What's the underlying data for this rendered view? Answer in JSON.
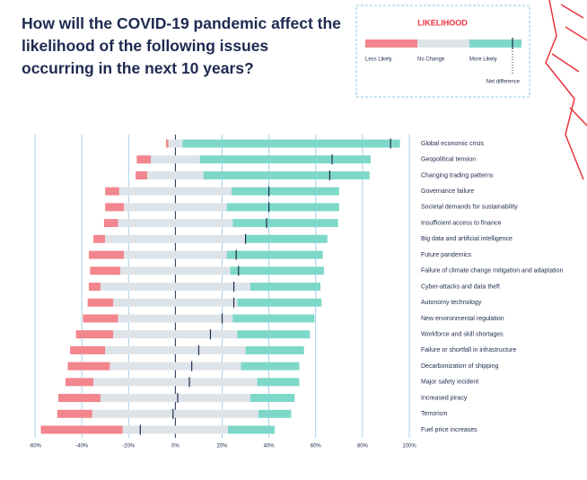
{
  "chart_data": {
    "type": "diverging_bar",
    "title": "How will the COVID-19 pandemic affect the likelihood of the following issues occurring in the next 10 years?",
    "legend_title": "LIKELIHOOD",
    "categories": [
      "Global economic crisis",
      "Geopolitical tension",
      "Changing trading patterns",
      "Governance failure",
      "Societal demands for sustainability",
      "Insufficient access to finance",
      "Big data and artificial intelligence",
      "Future pandemics",
      "Failure of climate change mitigation and adaptation",
      "Cyber-attacks and data theft",
      "Autonomy technology",
      "New environmental regulation",
      "Workforce and skill shortages",
      "Failure or shortfall in infrastructure",
      "Decarbonization of shipping",
      "Major safety incident",
      "Increased piracy",
      "Terrorism",
      "Fuel price increases"
    ],
    "series": [
      {
        "name": "Less Likely",
        "color": "#f2858e",
        "values": [
          1,
          6,
          5,
          6,
          8,
          6,
          5,
          15,
          13,
          5,
          11,
          15,
          16,
          15,
          18,
          12,
          18,
          15,
          35
        ]
      },
      {
        "name": "No Change",
        "color": "#dde4e9",
        "values": [
          6,
          21,
          24,
          48,
          44,
          49,
          60,
          44,
          47,
          64,
          53,
          49,
          53,
          60,
          56,
          70,
          64,
          71,
          45
        ]
      },
      {
        "name": "More Likely",
        "color": "#7ed8c9",
        "values": [
          93,
          73,
          71,
          46,
          48,
          45,
          35,
          41,
          40,
          30,
          36,
          35,
          31,
          25,
          25,
          18,
          19,
          14,
          20
        ]
      }
    ],
    "net": {
      "name": "Net difference",
      "color": "#1f2b4d",
      "values": [
        92,
        67,
        66,
        40,
        40,
        39,
        30,
        26,
        27,
        25,
        25,
        20,
        15,
        10,
        7,
        6,
        1,
        -1,
        -15
      ]
    },
    "xlim": [
      -60,
      100
    ],
    "xticks": [
      {
        "value": -60,
        "label": "-60%"
      },
      {
        "value": -40,
        "label": "-40%"
      },
      {
        "value": -20,
        "label": "-20%"
      },
      {
        "value": 0,
        "label": "0%"
      },
      {
        "value": 20,
        "label": "20%"
      },
      {
        "value": 40,
        "label": "40%"
      },
      {
        "value": 60,
        "label": "60%"
      },
      {
        "value": 80,
        "label": "80%"
      },
      {
        "value": 100,
        "label": "100%"
      }
    ],
    "grid": true
  }
}
